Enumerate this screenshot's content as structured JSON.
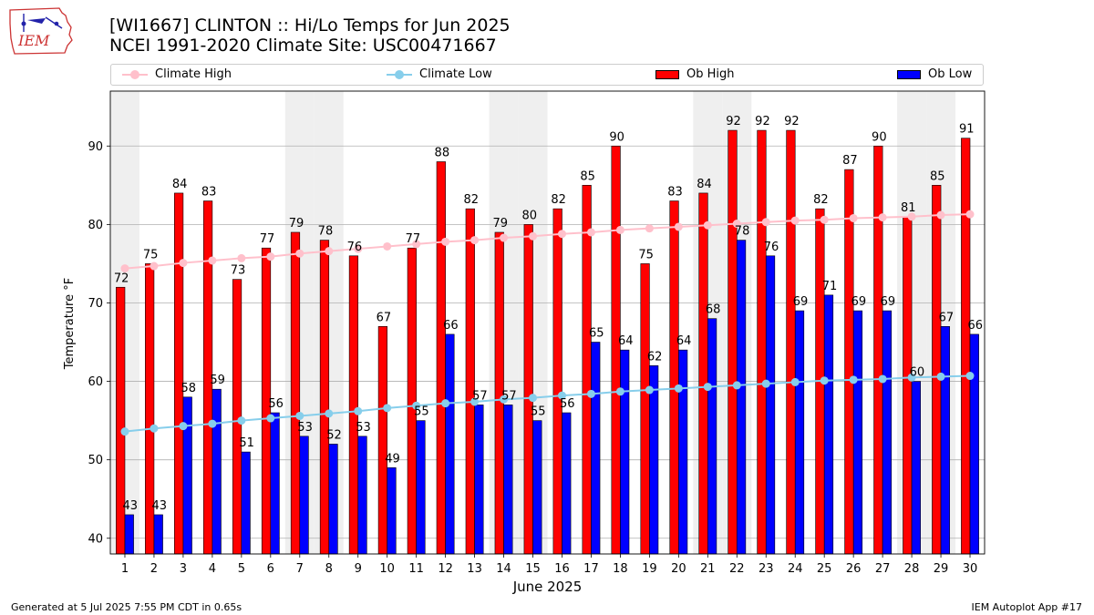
{
  "header": {
    "title_line1": "[WI1667] CLINTON :: Hi/Lo Temps for Jun 2025",
    "title_line2": "NCEI 1991-2020 Climate Site: USC00471667",
    "logo_text": "IEM"
  },
  "legend": {
    "climate_high": "Climate High",
    "climate_low": "Climate Low",
    "ob_high": "Ob High",
    "ob_low": "Ob Low",
    "placement": "top"
  },
  "footer": {
    "generated": "Generated at 5 Jul 2025 7:55 PM CDT in 0.65s",
    "app": "IEM Autoplot App #17"
  },
  "colors": {
    "ob_high": "#ff0000",
    "ob_low": "#0000ff",
    "climate_high": "#ffc0cb",
    "climate_low": "#87ceeb",
    "weekend_band": "#efefef"
  },
  "chart_data": {
    "type": "bar",
    "xlabel": "June 2025",
    "ylabel": "Temperature °F",
    "ylim": [
      38,
      97
    ],
    "yticks": [
      40,
      50,
      60,
      70,
      80,
      90
    ],
    "grid": "y",
    "categories": [
      "1",
      "2",
      "3",
      "4",
      "5",
      "6",
      "7",
      "8",
      "9",
      "10",
      "11",
      "12",
      "13",
      "14",
      "15",
      "16",
      "17",
      "18",
      "19",
      "20",
      "21",
      "22",
      "23",
      "24",
      "25",
      "26",
      "27",
      "28",
      "29",
      "30"
    ],
    "shaded_days": [
      1,
      7,
      8,
      14,
      15,
      21,
      22,
      28,
      29
    ],
    "series": [
      {
        "name": "Ob High",
        "kind": "bar",
        "values": [
          72,
          75,
          84,
          83,
          73,
          77,
          79,
          78,
          76,
          67,
          77,
          88,
          82,
          79,
          80,
          82,
          85,
          90,
          75,
          83,
          84,
          92,
          92,
          92,
          82,
          87,
          90,
          81,
          85,
          91
        ]
      },
      {
        "name": "Ob Low",
        "kind": "bar",
        "values": [
          43,
          43,
          58,
          59,
          51,
          56,
          53,
          52,
          53,
          49,
          55,
          66,
          57,
          57,
          55,
          56,
          65,
          64,
          62,
          64,
          68,
          78,
          76,
          69,
          71,
          69,
          69,
          60,
          67,
          66
        ]
      },
      {
        "name": "Climate High",
        "kind": "line",
        "values": [
          74.4,
          74.7,
          75.1,
          75.4,
          75.7,
          75.9,
          76.3,
          76.6,
          76.9,
          77.2,
          77.5,
          77.8,
          78.0,
          78.3,
          78.5,
          78.8,
          79.0,
          79.3,
          79.5,
          79.7,
          79.9,
          80.1,
          80.3,
          80.5,
          80.6,
          80.8,
          80.9,
          81.0,
          81.2,
          81.3
        ]
      },
      {
        "name": "Climate Low",
        "kind": "line",
        "values": [
          53.6,
          54.0,
          54.3,
          54.6,
          55.0,
          55.3,
          55.6,
          55.9,
          56.2,
          56.6,
          56.9,
          57.2,
          57.4,
          57.7,
          57.9,
          58.2,
          58.4,
          58.7,
          58.9,
          59.1,
          59.3,
          59.5,
          59.7,
          59.9,
          60.1,
          60.2,
          60.3,
          60.5,
          60.6,
          60.7
        ]
      }
    ]
  }
}
